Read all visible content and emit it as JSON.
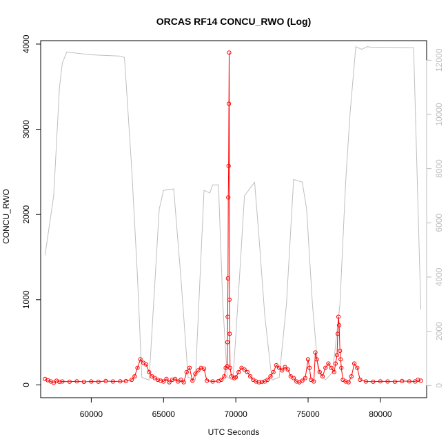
{
  "chart_data": {
    "type": "line",
    "title": "ORCAS RF14 CONCU_RWO (Log)",
    "xlabel": "UTC Seconds",
    "ylabel": "CONCU_RWO",
    "xlim": [
      56500,
      83200
    ],
    "ylim": [
      -150,
      4040
    ],
    "y2lim": [
      -450,
      12720
    ],
    "x_ticks": [
      60000,
      65000,
      70000,
      75000,
      80000
    ],
    "x_tick_labels": [
      "60000",
      "65000",
      "70000",
      "75000",
      "80000"
    ],
    "y_ticks": [
      0,
      1000,
      2000,
      3000,
      4000
    ],
    "y_tick_labels": [
      "0",
      "1000",
      "2000",
      "3000",
      "4000"
    ],
    "y2_ticks": [
      0,
      2000,
      4000,
      6000,
      8000,
      10000,
      12000
    ],
    "y2_tick_labels": [
      "0",
      "2000",
      "4000",
      "6000",
      "8000",
      "10000",
      "12000"
    ],
    "grid": false,
    "legend": "none",
    "colors": {
      "primary": "#ff0000",
      "secondary": "#bebebe"
    },
    "series": [
      {
        "axis": "left",
        "style": "points+line",
        "color": "#ff0000",
        "x": [
          56800,
          57000,
          57200,
          57400,
          57600,
          57800,
          58000,
          58500,
          59000,
          59500,
          60000,
          60500,
          61000,
          61500,
          62000,
          62400,
          62800,
          63000,
          63200,
          63400,
          63600,
          63800,
          64000,
          64200,
          64400,
          64600,
          64800,
          65000,
          65200,
          65400,
          65600,
          65800,
          66000,
          66200,
          66400,
          66600,
          66800,
          67000,
          67200,
          67400,
          67600,
          67800,
          68000,
          68400,
          68800,
          69000,
          69200,
          69300,
          69400,
          69420,
          69440,
          69460,
          69480,
          69500,
          69520,
          69540,
          69560,
          69580,
          69600,
          69700,
          69900,
          70000,
          70200,
          70400,
          70600,
          70800,
          71000,
          71200,
          71400,
          71600,
          71800,
          72000,
          72200,
          72400,
          72600,
          72800,
          73000,
          73200,
          73400,
          73600,
          73800,
          74000,
          74200,
          74400,
          74600,
          74800,
          75000,
          75100,
          75200,
          75400,
          75500,
          75600,
          75800,
          76000,
          76200,
          76400,
          76600,
          76800,
          76900,
          77000,
          77050,
          77100,
          77150,
          77200,
          77250,
          77300,
          77400,
          77600,
          77800,
          78000,
          78200,
          78400,
          78600,
          79000,
          79500,
          80000,
          80500,
          81000,
          81500,
          82000,
          82400,
          82600,
          82800
        ],
        "y": [
          70,
          55,
          40,
          25,
          50,
          35,
          40,
          38,
          42,
          36,
          40,
          38,
          45,
          40,
          42,
          45,
          60,
          100,
          200,
          300,
          260,
          240,
          150,
          100,
          80,
          60,
          50,
          40,
          70,
          30,
          60,
          70,
          40,
          60,
          30,
          150,
          200,
          50,
          130,
          170,
          200,
          190,
          50,
          40,
          45,
          60,
          100,
          200,
          220,
          500,
          800,
          1250,
          2200,
          2570,
          3300,
          3900,
          1000,
          600,
          200,
          100,
          80,
          90,
          150,
          200,
          180,
          150,
          100,
          60,
          40,
          30,
          35,
          40,
          60,
          100,
          150,
          230,
          200,
          170,
          210,
          180,
          100,
          80,
          40,
          30,
          50,
          80,
          300,
          200,
          60,
          40,
          380,
          300,
          150,
          100,
          200,
          250,
          200,
          150,
          250,
          350,
          600,
          800,
          700,
          400,
          300,
          200,
          60,
          40,
          30,
          100,
          250,
          200,
          60,
          40,
          38,
          42,
          40,
          38,
          45,
          42,
          40,
          60,
          50
        ]
      },
      {
        "axis": "right",
        "style": "line",
        "color": "#bebebe",
        "x": [
          56800,
          57400,
          57800,
          58000,
          58300,
          60000,
          62000,
          62300,
          62800,
          63200,
          63500,
          64000,
          64700,
          65000,
          65700,
          66200,
          66700,
          67200,
          67800,
          68200,
          68400,
          68800,
          69100,
          69400,
          69800,
          70200,
          70600,
          71300,
          71600,
          72000,
          72500,
          73000,
          73500,
          74000,
          74600,
          74900,
          75300,
          75700,
          76200,
          76700,
          77200,
          77600,
          77900,
          78300,
          78700,
          79100,
          79300,
          81000,
          82300,
          82800
        ],
        "y": [
          4800,
          7000,
          11000,
          11900,
          12300,
          12200,
          12150,
          12100,
          8000,
          4000,
          300,
          200,
          6500,
          7200,
          7250,
          4000,
          300,
          200,
          7200,
          7100,
          7400,
          7400,
          3000,
          300,
          200,
          3500,
          7000,
          7500,
          5500,
          2600,
          200,
          300,
          3000,
          7600,
          7500,
          6500,
          3000,
          500,
          200,
          500,
          3000,
          7500,
          10000,
          12500,
          12400,
          12500,
          12480,
          12470,
          12460,
          2800
        ]
      }
    ]
  }
}
